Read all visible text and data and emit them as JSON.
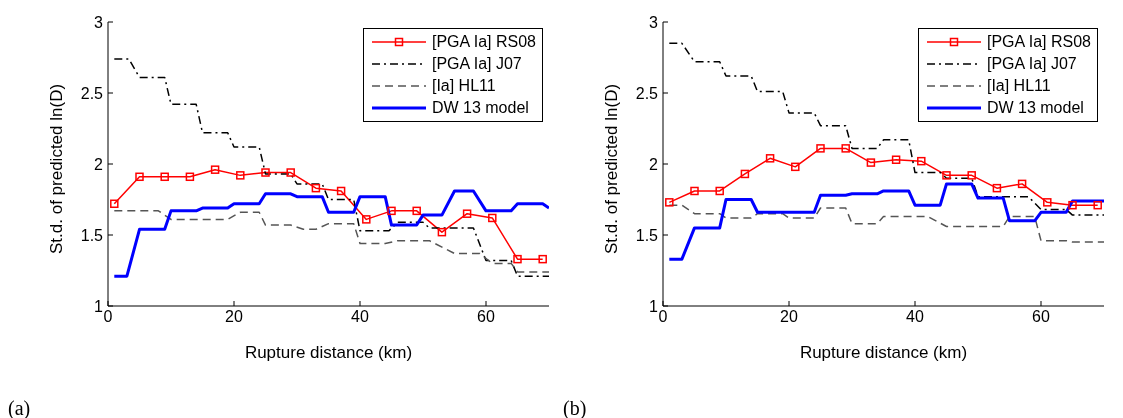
{
  "chart_data": [
    {
      "type": "line",
      "xlabel": "Rupture distance (km)",
      "ylabel": "St.d. of predicted ln(D)",
      "xlim": [
        0,
        70
      ],
      "xticks": [
        0,
        20,
        40,
        60
      ],
      "ylim": [
        1,
        3
      ],
      "yticks": [
        1,
        1.5,
        2,
        2.5,
        3
      ],
      "grid": false,
      "legend": "top right",
      "annotations": [
        "(a)"
      ],
      "series": [
        {
          "name": "[PGA Ia] RS08",
          "color": "#ff0000",
          "marker": "square",
          "line_style": "solid",
          "x": [
            1,
            5,
            9,
            13,
            17,
            21,
            25,
            29,
            33,
            37,
            41,
            45,
            49,
            53,
            57,
            61,
            65,
            69
          ],
          "values": [
            1.72,
            1.91,
            1.91,
            1.91,
            1.96,
            1.92,
            1.94,
            1.94,
            1.83,
            1.81,
            1.61,
            1.67,
            1.67,
            1.52,
            1.65,
            1.62,
            1.33,
            1.33
          ]
        },
        {
          "name": "[PGA Ia] J07",
          "color": "#000000",
          "marker": "none",
          "line_style": "dashdot",
          "x": [
            1,
            3.3,
            5,
            9,
            10,
            14,
            15,
            19,
            20,
            24,
            25,
            29,
            30,
            34,
            35,
            39,
            40,
            44.6,
            46,
            50,
            51,
            58,
            60,
            64,
            65,
            70
          ],
          "values": [
            2.74,
            2.74,
            2.61,
            2.61,
            2.42,
            2.42,
            2.22,
            2.22,
            2.12,
            2.12,
            1.93,
            1.93,
            1.86,
            1.86,
            1.75,
            1.75,
            1.53,
            1.53,
            1.59,
            1.59,
            1.55,
            1.55,
            1.32,
            1.32,
            1.21,
            1.21
          ]
        },
        {
          "name": "[Ia] HL11",
          "color": "#555555",
          "marker": "none",
          "line_style": "dashed",
          "x": [
            1,
            8,
            10,
            19,
            21,
            24,
            25,
            29,
            31,
            33,
            35,
            39,
            40,
            44,
            46,
            51,
            55,
            59,
            61,
            64,
            65,
            70
          ],
          "values": [
            1.67,
            1.67,
            1.61,
            1.61,
            1.66,
            1.66,
            1.57,
            1.57,
            1.54,
            1.54,
            1.58,
            1.58,
            1.44,
            1.44,
            1.46,
            1.46,
            1.37,
            1.37,
            1.3,
            1.3,
            1.24,
            1.24
          ]
        },
        {
          "name": "DW 13 model",
          "color": "#0000ff",
          "marker": "none",
          "line_style": "solid",
          "x": [
            1,
            3,
            5,
            9,
            10,
            14,
            15,
            19,
            20,
            24,
            25,
            29,
            30,
            34,
            35,
            39,
            40,
            44,
            45,
            49,
            50,
            53,
            55,
            58,
            60,
            64,
            65,
            69,
            70
          ],
          "values": [
            1.21,
            1.21,
            1.54,
            1.54,
            1.67,
            1.67,
            1.69,
            1.69,
            1.72,
            1.72,
            1.79,
            1.79,
            1.77,
            1.77,
            1.66,
            1.66,
            1.77,
            1.77,
            1.57,
            1.57,
            1.64,
            1.64,
            1.81,
            1.81,
            1.67,
            1.67,
            1.72,
            1.72,
            1.69
          ]
        }
      ]
    },
    {
      "type": "line",
      "xlabel": "Rupture distance (km)",
      "ylabel": "St.d. of predicted ln(D)",
      "xlim": [
        0,
        70
      ],
      "xticks": [
        0,
        20,
        40,
        60
      ],
      "ylim": [
        1,
        3
      ],
      "yticks": [
        1,
        1.5,
        2,
        2.5,
        3
      ],
      "grid": false,
      "legend": "top right",
      "annotations": [
        "(b)"
      ],
      "series": [
        {
          "name": "[PGA Ia] RS08",
          "color": "#ff0000",
          "marker": "square",
          "line_style": "solid",
          "x": [
            1,
            5,
            9,
            13,
            17,
            21,
            25,
            29,
            33,
            37,
            41,
            45,
            49,
            53,
            57,
            61,
            65,
            69
          ],
          "values": [
            1.73,
            1.81,
            1.81,
            1.93,
            2.04,
            1.98,
            2.11,
            2.11,
            2.01,
            2.03,
            2.02,
            1.92,
            1.92,
            1.83,
            1.86,
            1.73,
            1.71,
            1.71
          ]
        },
        {
          "name": "[PGA Ia] J07",
          "color": "#000000",
          "marker": "none",
          "line_style": "dashdot",
          "x": [
            1,
            3,
            5,
            9,
            10,
            14,
            15,
            19,
            20,
            24,
            25,
            29,
            30,
            34,
            35,
            39,
            40,
            44,
            45,
            49,
            50,
            58,
            60,
            64,
            65,
            70
          ],
          "values": [
            2.85,
            2.85,
            2.72,
            2.72,
            2.62,
            2.62,
            2.51,
            2.51,
            2.36,
            2.36,
            2.27,
            2.27,
            2.11,
            2.11,
            2.17,
            2.17,
            1.94,
            1.94,
            1.9,
            1.9,
            1.77,
            1.77,
            1.68,
            1.68,
            1.64,
            1.64
          ]
        },
        {
          "name": "[Ia] HL11",
          "color": "#555555",
          "marker": "none",
          "line_style": "dashed",
          "x": [
            1,
            3,
            5,
            9,
            10,
            14,
            15,
            19,
            20,
            24,
            25,
            29,
            30,
            34,
            35,
            42,
            45,
            54,
            55,
            59,
            60,
            64,
            65,
            70
          ],
          "values": [
            1.71,
            1.71,
            1.65,
            1.65,
            1.62,
            1.62,
            1.65,
            1.65,
            1.62,
            1.62,
            1.69,
            1.69,
            1.58,
            1.58,
            1.63,
            1.63,
            1.56,
            1.56,
            1.63,
            1.63,
            1.46,
            1.46,
            1.45,
            1.45
          ]
        },
        {
          "name": "DW 13 model",
          "color": "#0000ff",
          "marker": "none",
          "line_style": "solid",
          "x": [
            1,
            3,
            5,
            9,
            10,
            14,
            15,
            24,
            25,
            29,
            30,
            34,
            35,
            39,
            40,
            44,
            45,
            49,
            50,
            54,
            55,
            59,
            60,
            64,
            65,
            70
          ],
          "values": [
            1.33,
            1.33,
            1.55,
            1.55,
            1.75,
            1.75,
            1.66,
            1.66,
            1.78,
            1.78,
            1.79,
            1.79,
            1.81,
            1.81,
            1.71,
            1.71,
            1.86,
            1.86,
            1.76,
            1.76,
            1.6,
            1.6,
            1.66,
            1.66,
            1.74,
            1.74
          ]
        }
      ]
    }
  ]
}
